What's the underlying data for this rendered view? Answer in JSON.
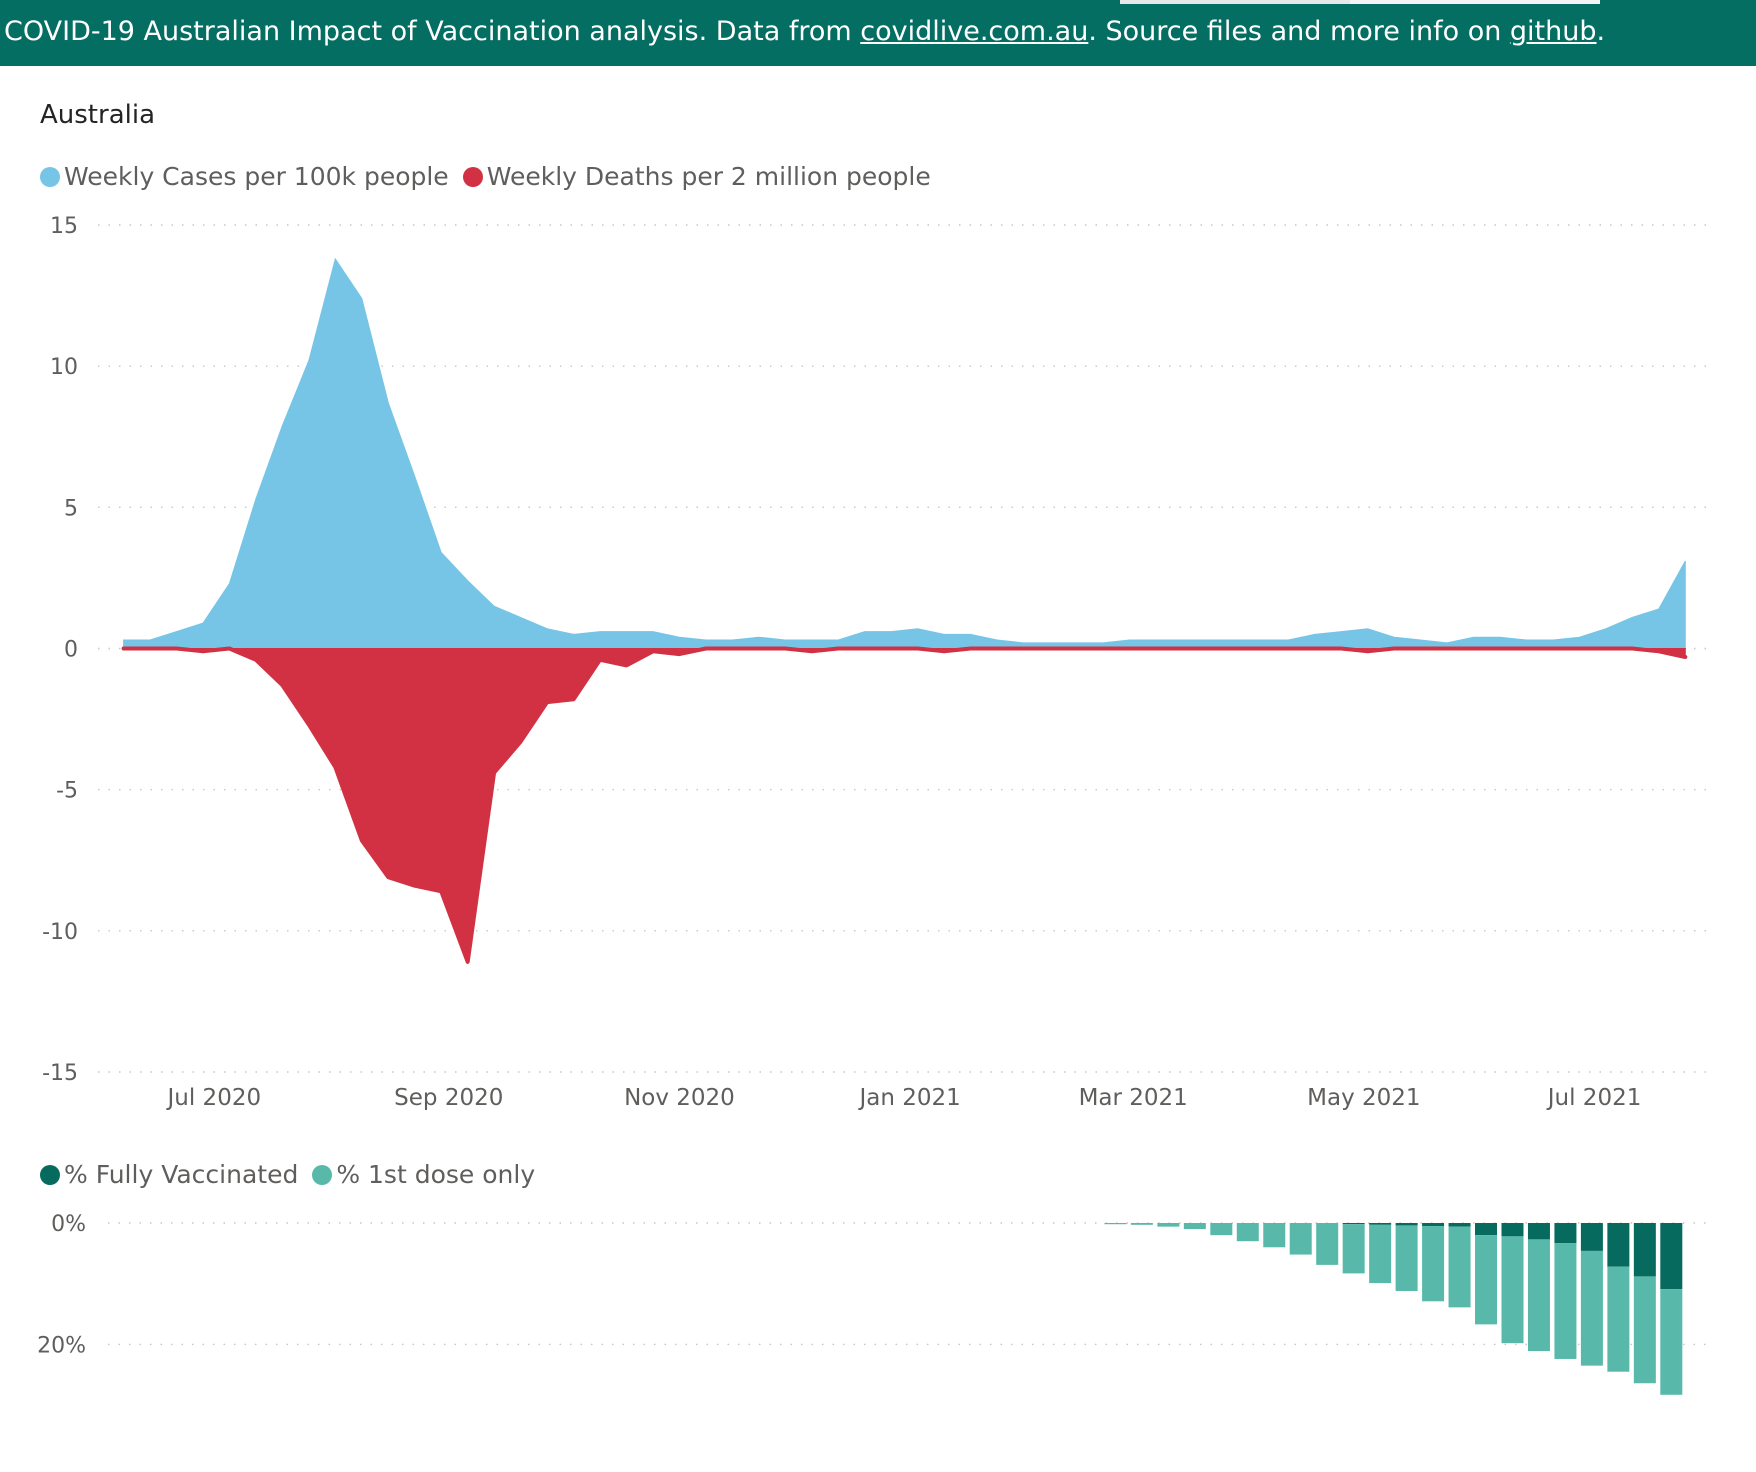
{
  "banner": {
    "text_before_link1": "COVID-19 Australian Impact of Vaccination analysis. Data from ",
    "link1": "covidlive.com.au",
    "text_between": ". Source files and more info on ",
    "link2": "github",
    "text_after": ".",
    "color": "#046e62"
  },
  "region_title": "Australia",
  "chart_data": [
    {
      "type": "area",
      "title": "",
      "legend_position": "top-left",
      "grid": true,
      "ylim": [
        -15,
        15
      ],
      "y_ticks": [
        "15",
        "10",
        "5",
        "0",
        "-5",
        "-10",
        "-15"
      ],
      "y_tick_values": [
        15,
        10,
        5,
        0,
        -5,
        -10,
        -15
      ],
      "x_ticks": [
        "Jul 2020",
        "Sep 2020",
        "Nov 2020",
        "Jan 2021",
        "Mar 2021",
        "May 2021",
        "Jul 2021"
      ],
      "x_tick_dates": [
        "2020-07-01",
        "2020-09-01",
        "2020-11-01",
        "2021-01-01",
        "2021-03-01",
        "2021-05-01",
        "2021-07-01"
      ],
      "x_range": [
        "2020-06-05",
        "2021-07-31"
      ],
      "x": [
        "2020-06-07",
        "2020-06-14",
        "2020-06-21",
        "2020-06-28",
        "2020-07-05",
        "2020-07-12",
        "2020-07-19",
        "2020-07-26",
        "2020-08-02",
        "2020-08-09",
        "2020-08-16",
        "2020-08-23",
        "2020-08-30",
        "2020-09-06",
        "2020-09-13",
        "2020-09-20",
        "2020-09-27",
        "2020-10-04",
        "2020-10-11",
        "2020-10-18",
        "2020-10-25",
        "2020-11-01",
        "2020-11-08",
        "2020-11-15",
        "2020-11-22",
        "2020-11-29",
        "2020-12-06",
        "2020-12-13",
        "2020-12-20",
        "2020-12-27",
        "2021-01-03",
        "2021-01-10",
        "2021-01-17",
        "2021-01-24",
        "2021-01-31",
        "2021-02-07",
        "2021-02-14",
        "2021-02-21",
        "2021-02-28",
        "2021-03-07",
        "2021-03-14",
        "2021-03-21",
        "2021-03-28",
        "2021-04-04",
        "2021-04-11",
        "2021-04-18",
        "2021-04-25",
        "2021-05-02",
        "2021-05-09",
        "2021-05-16",
        "2021-05-23",
        "2021-05-30",
        "2021-06-06",
        "2021-06-13",
        "2021-06-20",
        "2021-06-27",
        "2021-07-04",
        "2021-07-11",
        "2021-07-18",
        "2021-07-25"
      ],
      "series": [
        {
          "name": "Weekly Cases per 100k people",
          "color": "#76c5e6",
          "values": [
            0.3,
            0.3,
            0.6,
            0.9,
            2.3,
            5.3,
            7.9,
            10.2,
            13.8,
            12.4,
            8.7,
            6.1,
            3.4,
            2.4,
            1.5,
            1.1,
            0.7,
            0.5,
            0.6,
            0.6,
            0.6,
            0.4,
            0.3,
            0.3,
            0.4,
            0.3,
            0.3,
            0.3,
            0.6,
            0.6,
            0.7,
            0.5,
            0.5,
            0.3,
            0.2,
            0.2,
            0.2,
            0.2,
            0.3,
            0.3,
            0.3,
            0.3,
            0.3,
            0.3,
            0.3,
            0.5,
            0.6,
            0.7,
            0.4,
            0.3,
            0.2,
            0.4,
            0.4,
            0.3,
            0.3,
            0.4,
            0.7,
            1.1,
            1.4,
            3.1
          ]
        },
        {
          "name": "Weekly Deaths per 2 million people",
          "color": "#d13143",
          "values": [
            0,
            0,
            0,
            -0.1,
            0,
            -0.4,
            -1.3,
            -2.7,
            -4.2,
            -6.8,
            -8.1,
            -8.4,
            -8.6,
            -11.1,
            -4.4,
            -3.3,
            -1.9,
            -1.8,
            -0.4,
            -0.6,
            -0.1,
            -0.2,
            0,
            0,
            0,
            0,
            -0.1,
            0,
            0,
            0,
            0,
            -0.1,
            0,
            0,
            0,
            0,
            0,
            0,
            0,
            0,
            0,
            0,
            0,
            0,
            0,
            0,
            0,
            -0.1,
            0,
            0,
            0,
            0,
            0,
            0,
            0,
            0,
            0,
            0,
            -0.1,
            -0.3
          ]
        }
      ]
    },
    {
      "type": "bar",
      "stacked": true,
      "title": "",
      "legend_position": "top-left",
      "grid": true,
      "ylim": [
        0,
        30
      ],
      "y_inverted": true,
      "y_ticks": [
        "0%",
        "20%"
      ],
      "y_tick_values": [
        0,
        20
      ],
      "x_range": [
        "2020-06-05",
        "2021-07-31"
      ],
      "x": [
        "2021-02-28",
        "2021-03-07",
        "2021-03-14",
        "2021-03-21",
        "2021-03-28",
        "2021-04-04",
        "2021-04-11",
        "2021-04-18",
        "2021-04-25",
        "2021-05-02",
        "2021-05-09",
        "2021-05-16",
        "2021-05-23",
        "2021-05-30",
        "2021-06-06",
        "2021-06-13",
        "2021-06-20",
        "2021-06-27",
        "2021-07-04",
        "2021-07-11",
        "2021-07-18",
        "2021-07-25"
      ],
      "series": [
        {
          "name": "% Fully Vaccinated",
          "color": "#066a5e",
          "values": [
            0,
            0,
            0,
            0,
            0,
            0,
            0,
            0,
            0,
            0.2,
            0.3,
            0.4,
            0.5,
            0.6,
            2,
            2.2,
            2.7,
            3.3,
            4.6,
            7.2,
            8.8,
            10.9
          ]
        },
        {
          "name": "% 1st dose only",
          "color": "#58b9ab",
          "values": [
            0.2,
            0.3,
            0.6,
            1,
            2,
            3,
            4,
            5.2,
            6.9,
            8.1,
            9.6,
            10.8,
            12.4,
            13.3,
            14.7,
            17.6,
            18.4,
            19.1,
            18.9,
            17.3,
            17.6,
            17.4
          ]
        }
      ]
    }
  ]
}
